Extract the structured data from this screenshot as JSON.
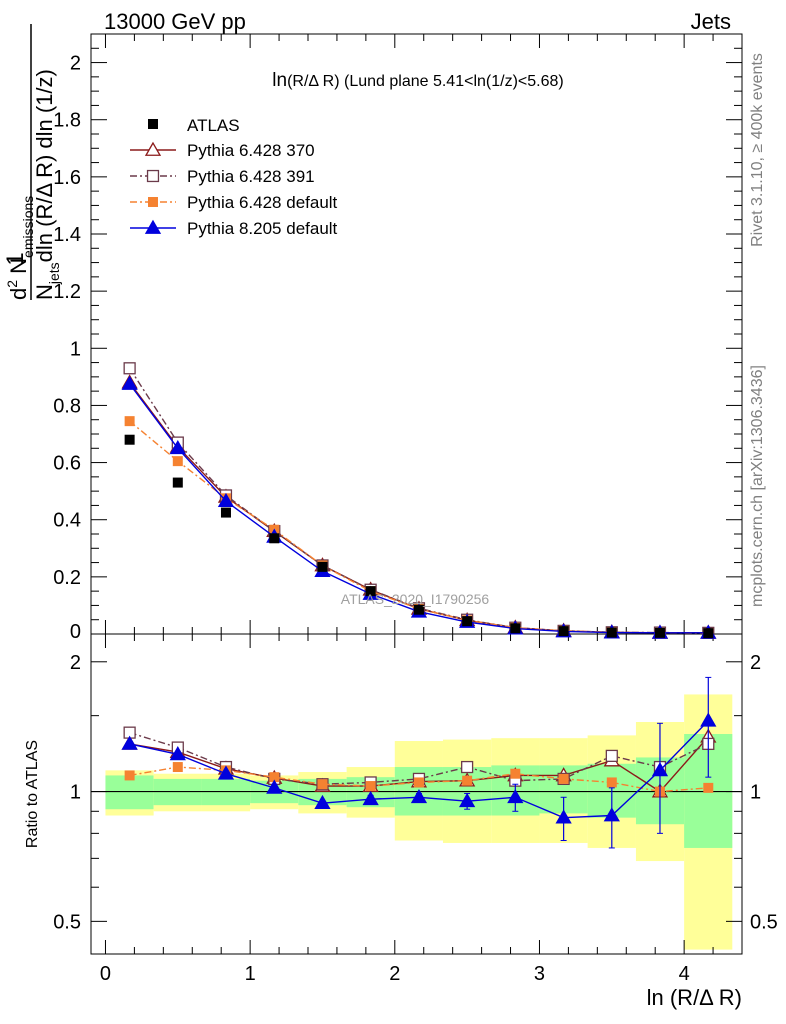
{
  "header": {
    "left": "13000 GeV pp",
    "right": "Jets"
  },
  "side_labels": {
    "rivet": "Rivet 3.1.10, ≥ 400k events",
    "mcplots": "mcplots.cern.ch [arXiv:1306.3436]"
  },
  "watermark": "ATLAS_2020_I1790256",
  "chart_data": {
    "type": "line",
    "title": "ln(R/Δ R) (Lund plane 5.41<ln(1/z)<5.68)",
    "title_parts": {
      "main": "ln",
      "arg": "(R/Δ R)",
      "rest": " (Lund plane 5.41<ln(1/z)<5.68)"
    },
    "xlabel": "ln (R/Δ R)",
    "ylabel_parts": {
      "one": "1",
      "den_n": "N",
      "den_sub": "jets",
      "den_rest": "dln (R/Δ R) dln (1/z)",
      "num_d": "d",
      "num_sup": "2",
      "num_n": " N",
      "num_sub": "emissions"
    },
    "ratio_ylabel": "Ratio to ATLAS",
    "xlim": [
      -0.1,
      4.4
    ],
    "main_ylim": [
      0,
      2.1
    ],
    "ratio_ylim": [
      0.42,
      2.32
    ],
    "x_ticks": [
      "0",
      "1",
      "2",
      "3",
      "4"
    ],
    "main_y_ticks": [
      "0",
      "0.2",
      "0.4",
      "0.6",
      "0.8",
      "1",
      "1.2",
      "1.4",
      "1.6",
      "1.8",
      "2"
    ],
    "ratio_y_ticks": [
      "0.5",
      "1",
      "2"
    ],
    "x": [
      0.167,
      0.5,
      0.833,
      1.167,
      1.5,
      1.833,
      2.167,
      2.5,
      2.833,
      3.167,
      3.5,
      3.833,
      4.167
    ],
    "x_edges": [
      0.0,
      0.333,
      0.667,
      1.0,
      1.333,
      1.667,
      2.0,
      2.333,
      2.667,
      3.0,
      3.333,
      3.667,
      4.0,
      4.333
    ],
    "data": {
      "name": "ATLAS",
      "values": [
        0.68,
        0.53,
        0.425,
        0.335,
        0.235,
        0.15,
        0.085,
        0.045,
        0.02,
        0.01,
        0.005,
        0.004,
        0.003
      ]
    },
    "band_inner": {
      "lo": [
        0.91,
        0.93,
        0.93,
        0.94,
        0.93,
        0.92,
        0.88,
        0.88,
        0.88,
        0.89,
        0.87,
        0.84,
        0.74
      ],
      "hi": [
        1.09,
        1.07,
        1.07,
        1.06,
        1.07,
        1.08,
        1.14,
        1.14,
        1.15,
        1.15,
        1.16,
        1.2,
        1.36
      ]
    },
    "band_outer": {
      "lo": [
        0.88,
        0.9,
        0.9,
        0.91,
        0.89,
        0.87,
        0.77,
        0.76,
        0.76,
        0.76,
        0.74,
        0.69,
        0.43
      ],
      "hi": [
        1.12,
        1.1,
        1.1,
        1.09,
        1.11,
        1.14,
        1.31,
        1.32,
        1.33,
        1.33,
        1.35,
        1.45,
        1.68
      ]
    },
    "series": [
      {
        "name": "Pythia 6.428 370",
        "color": "#8b1a1a",
        "marker": "triangle-open",
        "dash": "",
        "values": [
          0.88,
          0.655,
          0.48,
          0.36,
          0.24,
          0.155,
          0.088,
          0.048,
          0.022,
          0.011,
          0.006,
          0.004,
          0.004
        ],
        "ratio": [
          1.29,
          1.235,
          1.13,
          1.075,
          1.03,
          1.03,
          1.055,
          1.06,
          1.09,
          1.09,
          1.18,
          1.0,
          1.34
        ]
      },
      {
        "name": "Pythia 6.428 391",
        "color": "#6b3a4a",
        "marker": "square-open",
        "dash": "7 3 2 3",
        "values": [
          0.93,
          0.67,
          0.485,
          0.36,
          0.24,
          0.155,
          0.09,
          0.05,
          0.022,
          0.011,
          0.006,
          0.005,
          0.004
        ],
        "ratio": [
          1.37,
          1.265,
          1.14,
          1.07,
          1.04,
          1.05,
          1.07,
          1.14,
          1.06,
          1.07,
          1.21,
          1.14,
          1.29
        ]
      },
      {
        "name": "Pythia 6.428 default",
        "color": "#f58231",
        "marker": "square-filled",
        "dash": "7 3 2 3",
        "values": [
          0.745,
          0.605,
          0.475,
          0.365,
          0.24,
          0.15,
          0.088,
          0.048,
          0.022,
          0.011,
          0.006,
          0.004,
          0.003
        ],
        "ratio": [
          1.09,
          1.14,
          1.12,
          1.08,
          1.04,
          1.03,
          1.05,
          1.06,
          1.1,
          1.07,
          1.05,
          1.0,
          1.02
        ]
      },
      {
        "name": "Pythia 8.205 default",
        "color": "#0000dd",
        "marker": "triangle-filled",
        "dash": "",
        "values": [
          0.875,
          0.65,
          0.465,
          0.34,
          0.22,
          0.14,
          0.078,
          0.042,
          0.019,
          0.009,
          0.005,
          0.004,
          0.004
        ],
        "ratio": [
          1.29,
          1.22,
          1.1,
          1.02,
          0.94,
          0.96,
          0.97,
          0.95,
          0.97,
          0.87,
          0.88,
          1.12,
          1.46
        ],
        "ratio_err": [
          0.01,
          0.01,
          0.01,
          0.01,
          0.01,
          0.02,
          0.02,
          0.04,
          0.07,
          0.1,
          0.14,
          0.32,
          0.38
        ]
      }
    ]
  }
}
